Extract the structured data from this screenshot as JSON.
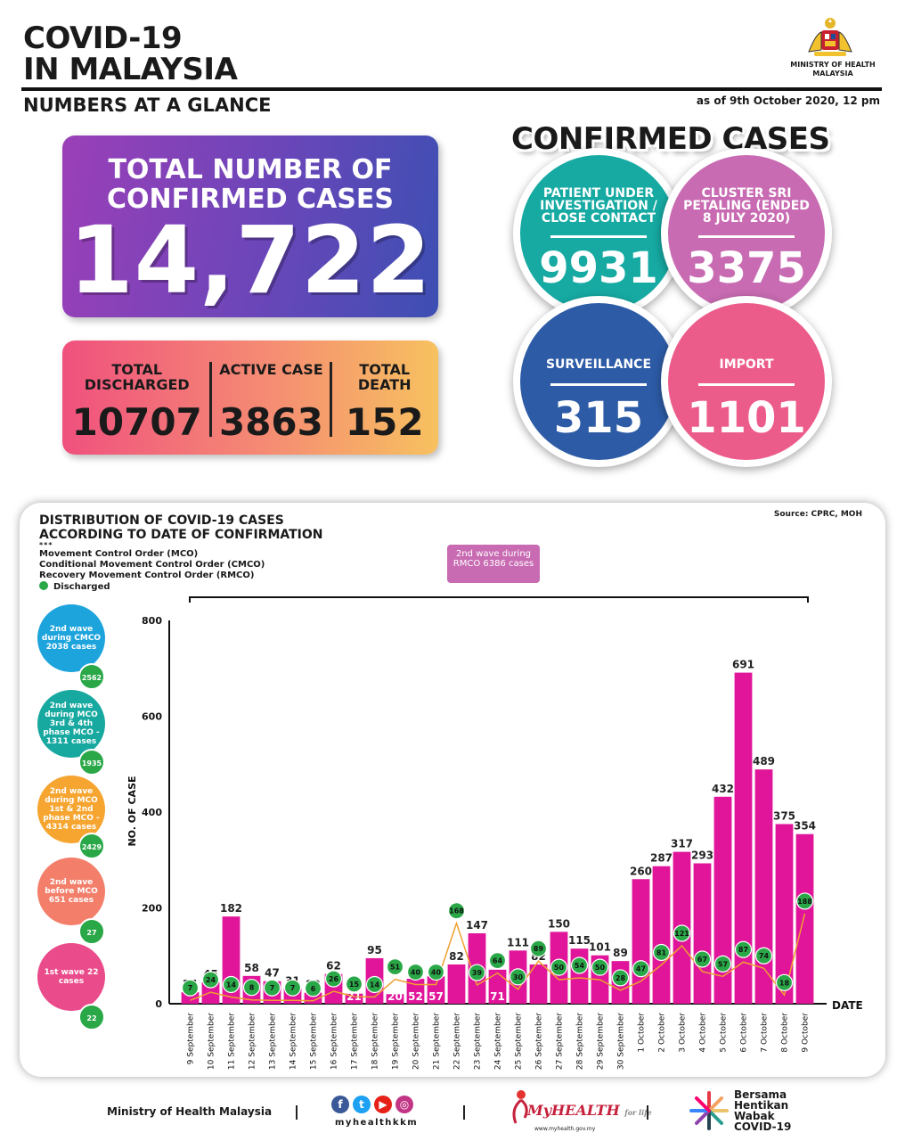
{
  "header": {
    "title_line1": "COVID-19",
    "title_line2": "IN MALAYSIA",
    "subtitle": "NUMBERS AT A GLANCE",
    "ministry": "MINISTRY OF HEALTH MALAYSIA",
    "as_of": "as of 9th October 2020, 12 pm"
  },
  "totals": {
    "confirmed_label": "TOTAL NUMBER OF CONFIRMED CASES",
    "confirmed_value": "14,722",
    "discharged_label": "TOTAL DISCHARGED",
    "discharged_value": "10707",
    "active_label": "ACTIVE CASE",
    "active_value": "3863",
    "death_label": "TOTAL DEATH",
    "death_value": "152"
  },
  "confirmed_cases": {
    "title": "CONFIRMED CASES",
    "pui_label": "PATIENT UNDER INVESTIGATION / CLOSE CONTACT",
    "pui_value": "9931",
    "cluster_label": "CLUSTER SRI PETALING (ENDED 8 JULY 2020)",
    "cluster_value": "3375",
    "surveillance_label": "SURVEILLANCE",
    "surveillance_value": "315",
    "import_label": "IMPORT",
    "import_value": "1101",
    "colors": {
      "pui": "#16aaa3",
      "cluster": "#c86bb2",
      "surveillance": "#2d5ba6",
      "import": "#ec5c8a"
    }
  },
  "distribution": {
    "title": "DISTRIBUTION OF COVID-19 CASES ACCORDING TO DATE OF CONFIRMATION",
    "legend_dots": "***",
    "legend_mco": "Movement Control Order (MCO)",
    "legend_cmco": "Conditional Movement Control Order (CMCO)",
    "legend_rmco": "Recovery Movement Control Order (RMCO)",
    "legend_discharged": "Discharged",
    "source": "Source: CPRC, MOH",
    "rmco_box": "2nd wave during RMCO 6386 cases",
    "waves": [
      {
        "label": "2nd wave during CMCO 2038 cases",
        "badge": "2562",
        "color": "#1ea4dd"
      },
      {
        "label": "2nd wave during MCO 3rd & 4th phase MCO - 1311 cases",
        "badge": "1935",
        "color": "#17a8a0"
      },
      {
        "label": "2nd wave during MCO 1st & 2nd phase MCO - 4314 cases",
        "badge": "2429",
        "color": "#f6a531"
      },
      {
        "label": "2nd wave before MCO 651 cases",
        "badge": "27",
        "color": "#f37f6b"
      },
      {
        "label": "1st wave 22 cases",
        "badge": "22",
        "color": "#ea4b8a"
      }
    ]
  },
  "chart_data": {
    "type": "bar",
    "categories": [
      "9 September",
      "10 September",
      "11 September",
      "12 September",
      "13 September",
      "14 September",
      "15 September",
      "16 September",
      "17 September",
      "18 September",
      "19 September",
      "20 September",
      "21 September",
      "22 September",
      "23 September",
      "24 September",
      "25 September",
      "26 September",
      "27 September",
      "28 September",
      "29 September",
      "30 September",
      "1 October",
      "2 October",
      "3 October",
      "4 October",
      "5 October",
      "6 October",
      "7 October",
      "8 October",
      "9 October"
    ],
    "series": [
      {
        "values": [
          24,
          45,
          182,
          58,
          47,
          31,
          23,
          62,
          21,
          95,
          20,
          52,
          57,
          82,
          147,
          71,
          111,
          82,
          150,
          115,
          101,
          89,
          260,
          287,
          317,
          293,
          432,
          691,
          489,
          375,
          354
        ],
        "color": "#e0159a"
      },
      {
        "name": "Discharged",
        "values": [
          7,
          24,
          14,
          8,
          7,
          7,
          6,
          26,
          15,
          14,
          51,
          40,
          40,
          168,
          39,
          64,
          30,
          89,
          50,
          54,
          50,
          28,
          47,
          81,
          121,
          67,
          57,
          87,
          74,
          18,
          188
        ],
        "color": "#2aa848"
      }
    ],
    "xlabel": "DATE",
    "ylabel": "NO. OF CASE",
    "ylim": [
      0,
      800
    ],
    "yticks": [
      0,
      200,
      400,
      600,
      800
    ],
    "line_color": "#f0a030"
  },
  "footer": {
    "moh": "Ministry of Health Malaysia",
    "handle": "myhealthkkm",
    "myhealth": "MyHEALTH",
    "myhealth_tag": "for life",
    "myhealth_url": "www.myhealth.gov.my",
    "campaign_line1": "Bersama",
    "campaign_line2": "Hentikan",
    "campaign_line3": "Wabak",
    "campaign_line4": "COVID-19"
  }
}
